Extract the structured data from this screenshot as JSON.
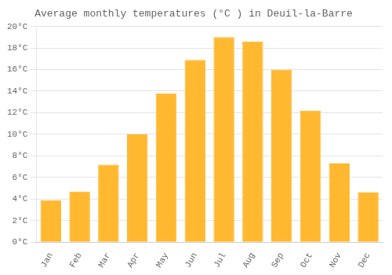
{
  "chart_data": {
    "type": "bar",
    "title": "Average monthly temperatures (°C ) in Deuil-la-Barre",
    "categories": [
      "Jan",
      "Feb",
      "Mar",
      "Apr",
      "May",
      "Jun",
      "Jul",
      "Aug",
      "Sep",
      "Oct",
      "Nov",
      "Dec"
    ],
    "values": [
      3.9,
      4.7,
      7.2,
      10.0,
      13.8,
      16.9,
      19.0,
      18.6,
      16.0,
      12.2,
      7.3,
      4.6
    ],
    "color": "#FFB830",
    "ylim": [
      0,
      20
    ],
    "yticks": [
      {
        "value": 0,
        "label": "0°C"
      },
      {
        "value": 2,
        "label": "2°C"
      },
      {
        "value": 4,
        "label": "4°C"
      },
      {
        "value": 6,
        "label": "6°C"
      },
      {
        "value": 8,
        "label": "8°C"
      },
      {
        "value": 10,
        "label": "10°C"
      },
      {
        "value": 12,
        "label": "12°C"
      },
      {
        "value": 14,
        "label": "14°C"
      },
      {
        "value": 16,
        "label": "16°C"
      },
      {
        "value": 18,
        "label": "18°C"
      },
      {
        "value": 20,
        "label": "20°C"
      }
    ],
    "grid": true
  }
}
